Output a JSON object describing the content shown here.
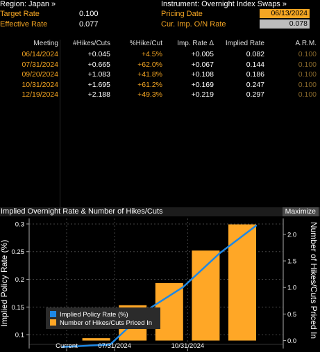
{
  "header": {
    "region": "Region: Japan »",
    "instrument": "Instrument: Overnight Index Swaps »",
    "target_rate_label": "Target Rate",
    "target_rate_value": "0.100",
    "effective_rate_label": "Effective Rate",
    "effective_rate_value": "0.077",
    "pricing_date_label": "Pricing Date",
    "pricing_date_value": "06/13/2024",
    "cur_imp_label": "Cur. Imp. O/N Rate",
    "cur_imp_value": "0.078"
  },
  "table": {
    "columns": [
      "Meeting",
      "#Hikes/Cuts",
      "%Hike/Cut",
      "Imp. Rate Δ",
      "Implied Rate",
      "A.R.M."
    ],
    "rows": [
      {
        "meeting": "06/14/2024",
        "hikes": "+0.045",
        "pct": "+4.5%",
        "delta": "+0.005",
        "implied": "0.082",
        "arm": "0.100"
      },
      {
        "meeting": "07/31/2024",
        "hikes": "+0.665",
        "pct": "+62.0%",
        "delta": "+0.067",
        "implied": "0.144",
        "arm": "0.100"
      },
      {
        "meeting": "09/20/2024",
        "hikes": "+1.083",
        "pct": "+41.8%",
        "delta": "+0.108",
        "implied": "0.186",
        "arm": "0.100"
      },
      {
        "meeting": "10/31/2024",
        "hikes": "+1.695",
        "pct": "+61.2%",
        "delta": "+0.169",
        "implied": "0.247",
        "arm": "0.100"
      },
      {
        "meeting": "12/19/2024",
        "hikes": "+2.188",
        "pct": "+49.3%",
        "delta": "+0.219",
        "implied": "0.297",
        "arm": "0.100"
      }
    ]
  },
  "chart_panel": {
    "title": "Implied Overnight Rate & Number of Hikes/Cuts",
    "maximize_label": "Maximize"
  },
  "colors": {
    "orange": "#f5a623",
    "blue": "#1e88e5",
    "bar": "#ffa726"
  },
  "chart_data": {
    "type": "bar",
    "ylabel": "Implied Policy Rate (%)",
    "y2label": "Number of Hikes/Cuts Priced In",
    "ylim": [
      0.075,
      0.31
    ],
    "y2lim": [
      -0.15,
      2.3
    ],
    "y_ticks": [
      "0.1",
      "0.15",
      "0.2",
      "0.25",
      "0.3"
    ],
    "y2_ticks": [
      "0.0",
      "0.5",
      "1.0",
      "1.5",
      "2.0"
    ],
    "x_ticks": [
      "Current",
      "07/31/2024",
      "10/31/2024"
    ],
    "grid": true,
    "legend": {
      "position": "bottom-left",
      "entries": [
        "Implied Policy Rate (%)",
        "Number of Hikes/Cuts Priced In"
      ]
    },
    "series": [
      {
        "name": "Implied Policy Rate (%)",
        "type": "line",
        "x": [
          "Current",
          "06/14/2024",
          "07/31/2024",
          "09/20/2024",
          "10/31/2024",
          "12/19/2024"
        ],
        "values": [
          0.078,
          0.082,
          0.144,
          0.186,
          0.247,
          0.297
        ]
      },
      {
        "name": "Number of Hikes/Cuts Priced In",
        "type": "bar",
        "x": [
          "06/14/2024",
          "07/31/2024",
          "09/20/2024",
          "10/31/2024",
          "12/19/2024"
        ],
        "values": [
          0.045,
          0.665,
          1.083,
          1.695,
          2.188
        ]
      }
    ]
  }
}
